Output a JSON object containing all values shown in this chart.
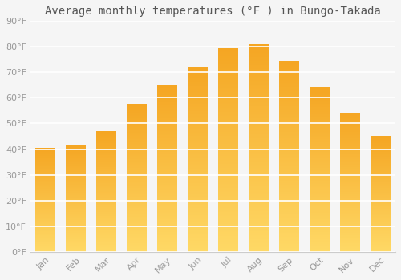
{
  "title": "Average monthly temperatures (°F ) in Bungo-Takada",
  "months": [
    "Jan",
    "Feb",
    "Mar",
    "Apr",
    "May",
    "Jun",
    "Jul",
    "Aug",
    "Sep",
    "Oct",
    "Nov",
    "Dec"
  ],
  "values": [
    40.5,
    41.5,
    47,
    57.5,
    65,
    72,
    79.5,
    81,
    74.5,
    64,
    54,
    45
  ],
  "bar_color_top": "#F5A623",
  "bar_color_bottom": "#FFD966",
  "ylim": [
    0,
    90
  ],
  "yticks": [
    0,
    10,
    20,
    30,
    40,
    50,
    60,
    70,
    80,
    90
  ],
  "ytick_labels": [
    "0°F",
    "10°F",
    "20°F",
    "30°F",
    "40°F",
    "50°F",
    "60°F",
    "70°F",
    "80°F",
    "90°F"
  ],
  "background_color": "#f5f5f5",
  "grid_color": "#ffffff",
  "title_fontsize": 10,
  "tick_fontsize": 8,
  "bar_width": 0.65
}
